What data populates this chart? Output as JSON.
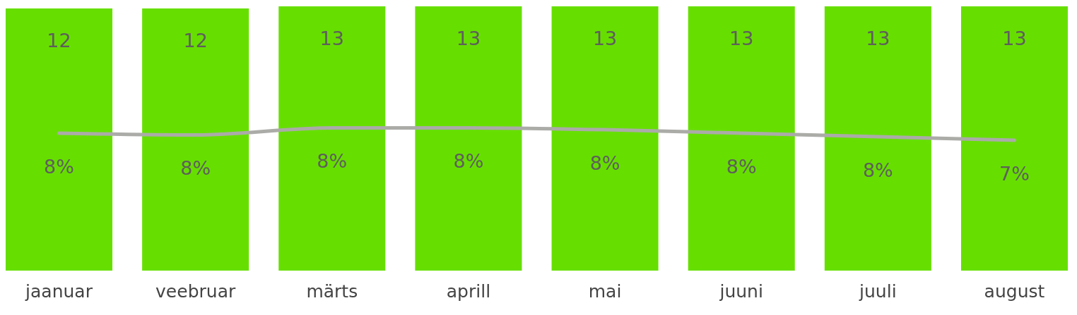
{
  "chart_data": {
    "type": "bar",
    "categories": [
      "jaanuar",
      "veebruar",
      "märts",
      "aprill",
      "mai",
      "juuni",
      "juuli",
      "august"
    ],
    "series": [
      {
        "color": "#66df00",
        "values": [
          12.4,
          12.4,
          12.5,
          12.5,
          12.5,
          12.5,
          12.5,
          12.5
        ],
        "value_labels": [
          "12",
          "12",
          "13",
          "13",
          "13",
          "13",
          "13",
          "13"
        ]
      },
      {
        "type": "line",
        "axis": "y2",
        "color": "#ababa8",
        "values": [
          7.8,
          7.7,
          8.1,
          8.1,
          8.0,
          7.8,
          7.6,
          7.4
        ],
        "value_labels": [
          "8%",
          "8%",
          "8%",
          "8%",
          "8%",
          "8%",
          "8%",
          "7%"
        ]
      }
    ],
    "ylim": [
      0,
      12.5
    ],
    "y2lim": [
      0,
      15
    ],
    "tick_labels": "x"
  }
}
